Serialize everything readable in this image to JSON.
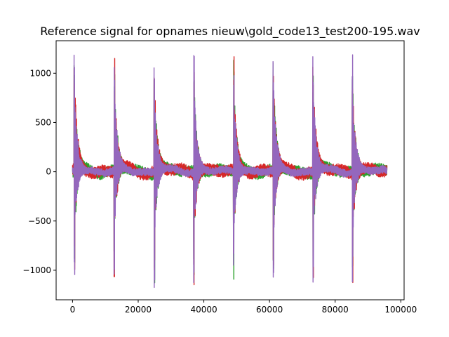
{
  "chart_data": {
    "type": "line",
    "title": "Reference signal for opnames nieuw\\gold_code13_test200-195.wav",
    "xlabel": "",
    "ylabel": "",
    "xlim": [
      -5000,
      101000
    ],
    "ylim": [
      -1300,
      1330
    ],
    "x_ticks": [
      {
        "value": 0,
        "label": "0"
      },
      {
        "value": 20000,
        "label": "20000"
      },
      {
        "value": 40000,
        "label": "40000"
      },
      {
        "value": 60000,
        "label": "60000"
      },
      {
        "value": 80000,
        "label": "80000"
      },
      {
        "value": 100000,
        "label": "100000"
      }
    ],
    "y_ticks": [
      {
        "value": -1000,
        "label": "−1000"
      },
      {
        "value": -500,
        "label": "−500"
      },
      {
        "value": 0,
        "label": "0"
      },
      {
        "value": 500,
        "label": "500"
      },
      {
        "value": 1000,
        "label": "1000"
      }
    ],
    "grid": false,
    "legend": "none",
    "x_range": [
      0,
      95800
    ],
    "pulse_positions": [
      600,
      12750,
      24950,
      37000,
      49100,
      61200,
      73300,
      85300
    ],
    "series": [
      {
        "color": "#2ca02c",
        "peaks": [
          1150,
          1140,
          1170,
          1190,
          1140,
          1160,
          1150,
          1170
        ],
        "troughs": [
          -1100,
          -1130,
          -1170,
          -1120,
          -1100,
          -1080,
          -1110,
          -1100
        ],
        "baseline_amplitude": 55
      },
      {
        "color": "#d62728",
        "peaks": [
          1170,
          1160,
          1180,
          1220,
          1170,
          1180,
          1170,
          1190
        ],
        "troughs": [
          -1110,
          -1140,
          -1180,
          -1130,
          -1110,
          -1100,
          -1120,
          -1110
        ],
        "baseline_amplitude": 60
      },
      {
        "color": "#9467bd",
        "peaks": [
          1190,
          1180,
          1190,
          1240,
          1190,
          1200,
          1180,
          1210
        ],
        "troughs": [
          -1130,
          -1160,
          -1180,
          -1140,
          -1140,
          -1110,
          -1130,
          -1120
        ],
        "baseline_amplitude": 40
      }
    ],
    "colors": {
      "axes": "#000000",
      "background": "#ffffff"
    }
  }
}
